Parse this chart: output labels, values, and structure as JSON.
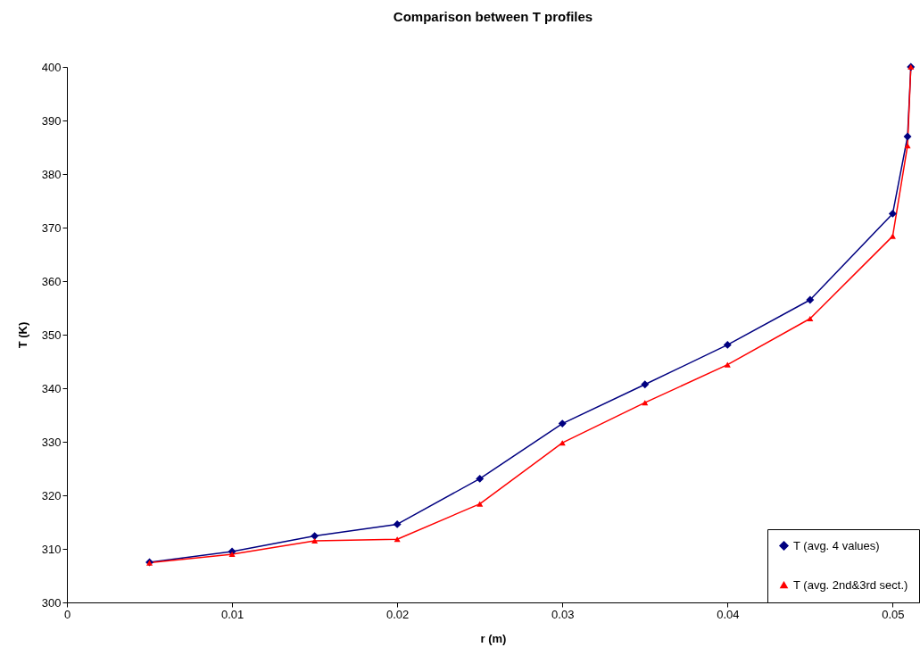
{
  "chart_data": {
    "type": "line",
    "title": "Comparison between T profiles",
    "xlabel": "r (m)",
    "ylabel": "T (K)",
    "xlim": [
      0,
      0.0516
    ],
    "xticks": [
      0,
      0.01,
      0.02,
      0.03,
      0.04,
      0.05
    ],
    "ylim": [
      300,
      400
    ],
    "yticks": [
      300,
      310,
      320,
      330,
      340,
      350,
      360,
      370,
      380,
      390,
      400
    ],
    "x": [
      0.005,
      0.01,
      0.015,
      0.02,
      0.025,
      0.03,
      0.035,
      0.04,
      0.045,
      0.05,
      0.0509,
      0.0511
    ],
    "series": [
      {
        "name": "T (avg. 4 values)",
        "color": "#000080",
        "marker": "diamond",
        "values": [
          307.5,
          309.5,
          312.4,
          314.6,
          323.1,
          333.4,
          340.7,
          348.1,
          356.5,
          372.6,
          387.0,
          400.0
        ]
      },
      {
        "name": "T (avg. 2nd&3rd sect.)",
        "color": "#ff0000",
        "marker": "triangle",
        "values": [
          307.4,
          309.0,
          311.5,
          311.8,
          318.4,
          329.8,
          337.3,
          344.4,
          353.0,
          368.4,
          385.3,
          400.0
        ]
      }
    ],
    "grid": false,
    "legend": "right",
    "line_style": "solid"
  }
}
